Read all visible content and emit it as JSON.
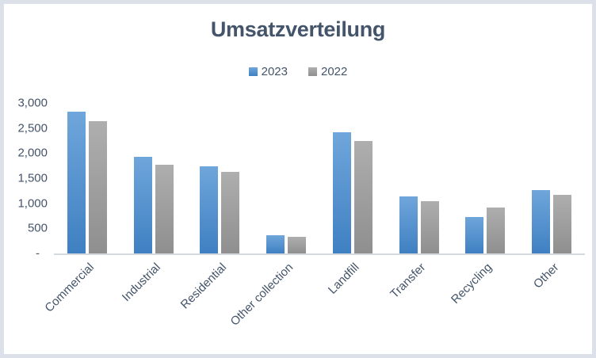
{
  "chart_data": {
    "type": "bar",
    "title": "Umsatzverteilung",
    "categories": [
      "Commercial",
      "Industrial",
      "Residential",
      "Other collection",
      "Landfill",
      "Transfer",
      "Recycling",
      "Other"
    ],
    "series": [
      {
        "name": "2023",
        "color_top": "#6fa6db",
        "color_bottom": "#3f80c2",
        "values": [
          2830,
          1920,
          1730,
          370,
          2410,
          1130,
          730,
          1270
        ]
      },
      {
        "name": "2022",
        "color_top": "#aeaeae",
        "color_bottom": "#8f8f8f",
        "values": [
          2640,
          1770,
          1630,
          330,
          2240,
          1040,
          920,
          1170
        ]
      }
    ],
    "y_tick_labels": [
      "3,000",
      "2,500",
      "2,000",
      "1,500",
      "1,000",
      "500",
      "-"
    ],
    "ylim": [
      0,
      3000
    ],
    "grid": false,
    "legend_position": "top-center",
    "x_label_rotation_deg": 45
  },
  "colors": {
    "frame_border": "#dce1e9",
    "background": "#ffffff",
    "title_text": "#44546a",
    "axis_text": "#44546a",
    "axis_line": "#d6d9dd"
  }
}
